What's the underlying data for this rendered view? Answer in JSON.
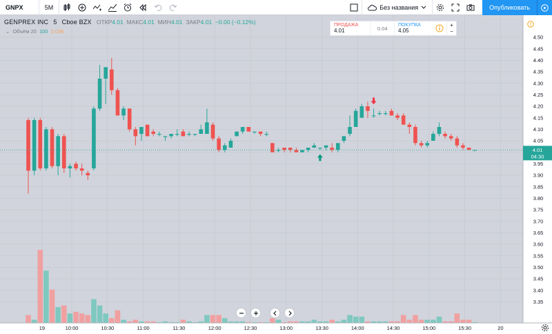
{
  "toolbar": {
    "symbol": "GNPX",
    "interval": "5M",
    "layout_name": "Без названия",
    "publish_label": "Опубликовать",
    "icons": [
      "compare-icon",
      "indicators-icon",
      "chart-type-icon",
      "templates-icon",
      "alert-icon",
      "replay-icon",
      "undo-icon",
      "redo-icon",
      "layout-square-icon",
      "cloud-icon",
      "settings-icon",
      "fullscreen-icon",
      "camera-icon",
      "play-icon"
    ]
  },
  "legend": {
    "title": "GENPREX INC",
    "interval": "5",
    "exchange": "Cboe BZX",
    "open_label": "ОТКР",
    "open": "4.01",
    "high_label": "МАКС",
    "high": "4.01",
    "low_label": "МИН",
    "low": "4.01",
    "close_label": "ЗАКР",
    "close": "4.01",
    "change": "−0.00 (−0.12%)",
    "volume_label": "Объём 20",
    "volume_value": "100",
    "volume_ma": "2.036"
  },
  "trade": {
    "sell_label": "ПРОДАЖА",
    "sell_price": "4.01",
    "spread": "0.04",
    "buy_label": "ПОКУПКА",
    "buy_price": "4.05",
    "plus": "+",
    "minus": "−"
  },
  "price_axis": {
    "last_price": "4.01",
    "countdown": "04:30"
  },
  "chart_data": {
    "type": "candlestick",
    "ylim": [
      3.3,
      4.5
    ],
    "y_ticks": [
      "4.50",
      "4.45",
      "4.40",
      "4.35",
      "4.30",
      "4.25",
      "4.20",
      "4.15",
      "4.10",
      "4.05",
      "4.00",
      "3.95",
      "3.90",
      "3.85",
      "3.80",
      "3.75",
      "3.70",
      "3.65",
      "3.60",
      "3.55",
      "3.50",
      "3.45",
      "3.40",
      "3.35"
    ],
    "x_ticks": [
      {
        "label": "19",
        "i": 3
      },
      {
        "label": "10:00",
        "i": 8
      },
      {
        "label": "10:30",
        "i": 14
      },
      {
        "label": "11:00",
        "i": 20
      },
      {
        "label": "11:30",
        "i": 26
      },
      {
        "label": "12:00",
        "i": 32
      },
      {
        "label": "12:30",
        "i": 38
      },
      {
        "label": "13:00",
        "i": 44
      },
      {
        "label": "13:30",
        "i": 50
      },
      {
        "label": "14:00",
        "i": 56
      },
      {
        "label": "14:30",
        "i": 62
      },
      {
        "label": "15:00",
        "i": 68
      },
      {
        "label": "15:30",
        "i": 74
      },
      {
        "label": "20",
        "i": 80
      }
    ],
    "colors": {
      "up": "#26a69a",
      "down": "#ef5350",
      "up_volume": "#7fc8c0",
      "down_volume": "#f0a0a0"
    },
    "candles": [
      {
        "o": 4.14,
        "h": 4.15,
        "l": 3.82,
        "c": 3.92,
        "v": 5
      },
      {
        "o": 3.92,
        "h": 4.15,
        "l": 3.9,
        "c": 4.14,
        "v": 2
      },
      {
        "o": 4.14,
        "h": 4.15,
        "l": 3.92,
        "c": 3.93,
        "v": 46
      },
      {
        "o": 3.93,
        "h": 4.11,
        "l": 3.92,
        "c": 4.1,
        "v": 33
      },
      {
        "o": 4.1,
        "h": 4.11,
        "l": 3.93,
        "c": 3.94,
        "v": 21
      },
      {
        "o": 3.94,
        "h": 4.08,
        "l": 3.9,
        "c": 4.07,
        "v": 10
      },
      {
        "o": 4.07,
        "h": 4.08,
        "l": 3.91,
        "c": 3.93,
        "v": 11
      },
      {
        "o": 3.93,
        "h": 3.95,
        "l": 3.89,
        "c": 3.94,
        "v": 6
      },
      {
        "o": 3.95,
        "h": 3.96,
        "l": 3.92,
        "c": 3.93,
        "v": 7
      },
      {
        "o": 3.93,
        "h": 3.95,
        "l": 3.9,
        "c": 3.92,
        "v": 6
      },
      {
        "o": 3.91,
        "h": 3.92,
        "l": 3.88,
        "c": 3.9,
        "v": 5
      },
      {
        "o": 3.93,
        "h": 4.2,
        "l": 3.92,
        "c": 4.19,
        "v": 15
      },
      {
        "o": 4.19,
        "h": 4.38,
        "l": 4.18,
        "c": 4.32,
        "v": 11
      },
      {
        "o": 4.32,
        "h": 4.37,
        "l": 4.21,
        "c": 4.37,
        "v": 6
      },
      {
        "o": 4.36,
        "h": 4.41,
        "l": 4.25,
        "c": 4.27,
        "v": 3
      },
      {
        "o": 4.27,
        "h": 4.28,
        "l": 4.16,
        "c": 4.16,
        "v": 8
      },
      {
        "o": 4.16,
        "h": 4.2,
        "l": 4.14,
        "c": 4.19,
        "v": 2
      },
      {
        "o": 4.19,
        "h": 4.19,
        "l": 4.09,
        "c": 4.1,
        "v": 1
      },
      {
        "o": 4.1,
        "h": 4.11,
        "l": 4.03,
        "c": 4.07,
        "v": 2
      },
      {
        "o": 4.08,
        "h": 4.11,
        "l": 4.05,
        "c": 4.11,
        "v": 1
      },
      {
        "o": 4.12,
        "h": 4.12,
        "l": 4.07,
        "c": 4.07,
        "v": 1
      },
      {
        "o": 4.09,
        "h": 4.1,
        "l": 4.07,
        "c": 4.08,
        "v": 1
      },
      {
        "o": 4.08,
        "h": 4.09,
        "l": 4.07,
        "c": 4.08,
        "v": 0.5
      },
      {
        "o": 4.07,
        "h": 4.07,
        "l": 4.05,
        "c": 4.07,
        "v": 1
      },
      {
        "o": 4.07,
        "h": 4.08,
        "l": 4.06,
        "c": 4.08,
        "v": 0.5
      },
      {
        "o": 4.08,
        "h": 4.1,
        "l": 4.07,
        "c": 4.08,
        "v": 0.5
      },
      {
        "o": 4.09,
        "h": 4.1,
        "l": 4.07,
        "c": 4.07,
        "v": 2
      },
      {
        "o": 4.08,
        "h": 4.09,
        "l": 4.07,
        "c": 4.08,
        "v": 1
      },
      {
        "o": 4.08,
        "h": 4.08,
        "l": 4.07,
        "c": 4.08,
        "v": 0.5
      },
      {
        "o": 4.08,
        "h": 4.12,
        "l": 4.08,
        "c": 4.1,
        "v": 1
      },
      {
        "o": 4.08,
        "h": 4.19,
        "l": 4.08,
        "c": 4.13,
        "v": 5
      },
      {
        "o": 4.12,
        "h": 4.13,
        "l": 4.05,
        "c": 4.06,
        "v": 5
      },
      {
        "o": 4.06,
        "h": 4.07,
        "l": 4.0,
        "c": 4.01,
        "v": 5
      },
      {
        "o": 4.01,
        "h": 4.04,
        "l": 4.0,
        "c": 4.03,
        "v": 3
      },
      {
        "o": 4.02,
        "h": 4.06,
        "l": 4.02,
        "c": 4.05,
        "v": 1
      },
      {
        "o": 4.07,
        "h": 4.09,
        "l": 4.07,
        "c": 4.09,
        "v": 1
      },
      {
        "o": 4.09,
        "h": 4.11,
        "l": 4.08,
        "c": 4.11,
        "v": 1
      },
      {
        "o": 4.11,
        "h": 4.11,
        "l": 4.09,
        "c": 4.09,
        "v": 0.5
      },
      {
        "o": 4.09,
        "h": 4.09,
        "l": 4.08,
        "c": 4.09,
        "v": 0.5
      },
      {
        "o": 4.09,
        "h": 4.09,
        "l": 4.07,
        "c": 4.08,
        "v": 0.5
      },
      {
        "o": 4.08,
        "h": 4.09,
        "l": 4.07,
        "c": 4.08,
        "v": 0.5
      },
      {
        "o": 4.04,
        "h": 4.04,
        "l": 4.0,
        "c": 4.0,
        "v": 3
      },
      {
        "o": 4.01,
        "h": 4.02,
        "l": 4.0,
        "c": 4.01,
        "v": 2
      },
      {
        "o": 4.02,
        "h": 4.02,
        "l": 4.0,
        "c": 4.01,
        "v": 0.5
      },
      {
        "o": 4.02,
        "h": 4.02,
        "l": 4.0,
        "c": 4.01,
        "v": 1
      },
      {
        "o": 4.01,
        "h": 4.02,
        "l": 4.0,
        "c": 4.0,
        "v": 1
      },
      {
        "o": 4.0,
        "h": 4.01,
        "l": 4.0,
        "c": 4.01,
        "v": 1
      },
      {
        "o": 4.01,
        "h": 4.02,
        "l": 4.0,
        "c": 4.02,
        "v": 1
      },
      {
        "o": 4.02,
        "h": 4.04,
        "l": 4.02,
        "c": 4.03,
        "v": 2
      },
      {
        "o": 4.02,
        "h": 4.02,
        "l": 4.01,
        "c": 4.02,
        "v": 1
      },
      {
        "o": 4.02,
        "h": 4.03,
        "l": 4.01,
        "c": 4.03,
        "v": 1
      },
      {
        "o": 4.02,
        "h": 4.04,
        "l": 4.0,
        "c": 4.01,
        "v": 2
      },
      {
        "o": 4.01,
        "h": 4.04,
        "l": 4.0,
        "c": 4.04,
        "v": 1
      },
      {
        "o": 4.05,
        "h": 4.07,
        "l": 4.04,
        "c": 4.07,
        "v": 2
      },
      {
        "o": 4.08,
        "h": 4.16,
        "l": 4.07,
        "c": 4.11,
        "v": 5
      },
      {
        "o": 4.11,
        "h": 4.19,
        "l": 4.11,
        "c": 4.18,
        "v": 4
      },
      {
        "o": 4.15,
        "h": 4.21,
        "l": 4.15,
        "c": 4.2,
        "v": 4
      },
      {
        "o": 4.2,
        "h": 4.22,
        "l": 4.15,
        "c": 4.18,
        "v": 1
      },
      {
        "o": 4.16,
        "h": 4.19,
        "l": 4.15,
        "c": 4.16,
        "v": 1
      },
      {
        "o": 4.17,
        "h": 4.18,
        "l": 4.16,
        "c": 4.17,
        "v": 1
      },
      {
        "o": 4.17,
        "h": 4.18,
        "l": 4.16,
        "c": 4.17,
        "v": 1
      },
      {
        "o": 4.18,
        "h": 4.19,
        "l": 4.16,
        "c": 4.16,
        "v": 1
      },
      {
        "o": 4.16,
        "h": 4.17,
        "l": 4.14,
        "c": 4.15,
        "v": 1
      },
      {
        "o": 4.16,
        "h": 4.17,
        "l": 4.12,
        "c": 4.12,
        "v": 5
      },
      {
        "o": 4.12,
        "h": 4.13,
        "l": 4.08,
        "c": 4.11,
        "v": 2
      },
      {
        "o": 4.11,
        "h": 4.12,
        "l": 4.03,
        "c": 4.04,
        "v": 5
      },
      {
        "o": 4.04,
        "h": 4.05,
        "l": 4.02,
        "c": 4.03,
        "v": 2
      },
      {
        "o": 4.03,
        "h": 4.05,
        "l": 4.02,
        "c": 4.04,
        "v": 2
      },
      {
        "o": 4.05,
        "h": 4.09,
        "l": 4.05,
        "c": 4.08,
        "v": 2
      },
      {
        "o": 4.08,
        "h": 4.13,
        "l": 4.07,
        "c": 4.11,
        "v": 4
      },
      {
        "o": 4.08,
        "h": 4.09,
        "l": 4.06,
        "c": 4.07,
        "v": 1
      },
      {
        "o": 4.07,
        "h": 4.08,
        "l": 4.05,
        "c": 4.06,
        "v": 1
      },
      {
        "o": 4.06,
        "h": 4.07,
        "l": 4.02,
        "c": 4.03,
        "v": 6
      },
      {
        "o": 4.03,
        "h": 4.04,
        "l": 4.01,
        "c": 4.02,
        "v": 2
      },
      {
        "o": 4.02,
        "h": 4.02,
        "l": 4.01,
        "c": 4.01,
        "v": 2
      },
      {
        "o": 4.01,
        "h": 4.01,
        "l": 4.01,
        "c": 4.01,
        "v": 0.5
      }
    ],
    "volume_scale_max": 50,
    "markers": [
      {
        "type": "buy",
        "i": 49
      },
      {
        "type": "sell",
        "i": 58
      }
    ]
  }
}
